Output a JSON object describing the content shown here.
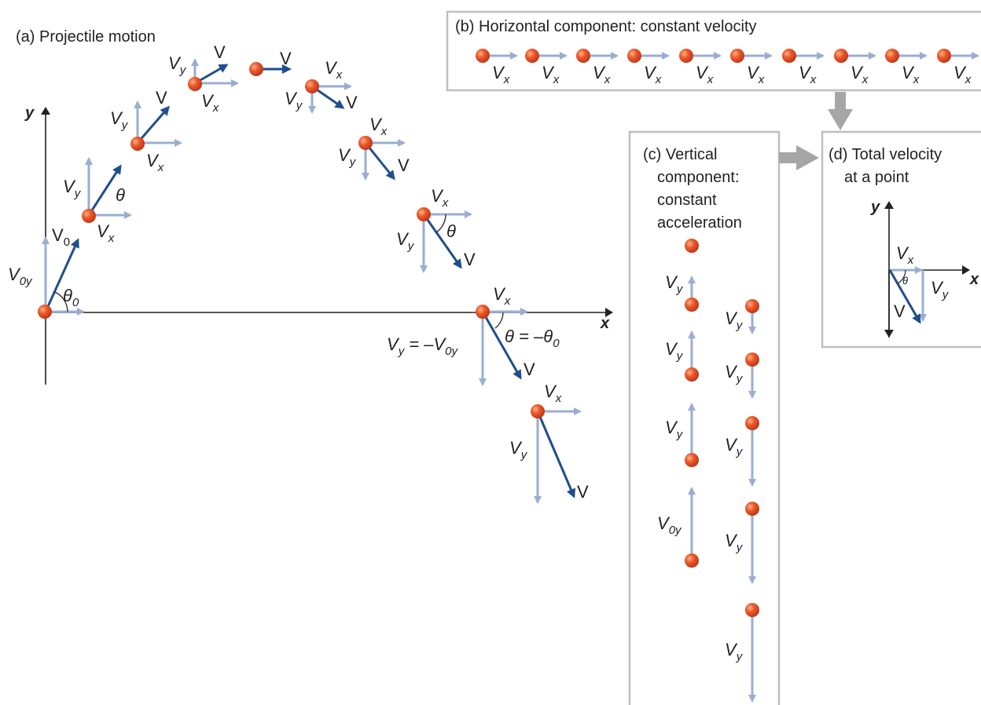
{
  "panels": {
    "a": {
      "title": "(a) Projectile motion"
    },
    "b": {
      "title": "(b) Horizontal component: constant velocity"
    },
    "c": {
      "title_lines": [
        "(c) Vertical",
        "component:",
        "constant",
        "acceleration"
      ]
    },
    "d": {
      "title_lines": [
        "(d) Total velocity",
        "at a point"
      ]
    }
  },
  "labels": {
    "x_axis": "x",
    "y_axis": "y",
    "v": "V",
    "v0": "V",
    "v0_sub": "0",
    "vx": "V",
    "vx_sub": "x",
    "vy": "V",
    "vy_sub": "y",
    "v0y": "V",
    "v0y_sub": "0y",
    "theta": "θ",
    "theta0": "θ",
    "theta0_sub": "0",
    "vy_equation_lhs": "V",
    "vy_equation_lhs_sub": "y",
    "vy_equation_mid": " = –V",
    "vy_equation_mid_sub": "0y",
    "theta_equation_lhs": "θ",
    "theta_equation_mid": " = –θ",
    "theta_equation_sub": "0"
  },
  "colors": {
    "component_arrow": "#9aaed0",
    "velocity_arrow": "#1f4e8c",
    "ball": "#e8502a",
    "panel_border": "#bfbfbf",
    "connector_arrow": "#a6a6a6",
    "axis": "#222222"
  }
}
